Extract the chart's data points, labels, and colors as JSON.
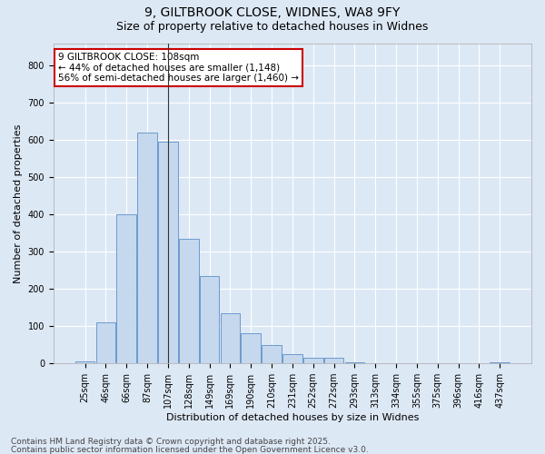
{
  "title1": "9, GILTBROOK CLOSE, WIDNES, WA8 9FY",
  "title2": "Size of property relative to detached houses in Widnes",
  "xlabel": "Distribution of detached houses by size in Widnes",
  "ylabel": "Number of detached properties",
  "categories": [
    "25sqm",
    "46sqm",
    "66sqm",
    "87sqm",
    "107sqm",
    "128sqm",
    "149sqm",
    "169sqm",
    "190sqm",
    "210sqm",
    "231sqm",
    "252sqm",
    "272sqm",
    "293sqm",
    "313sqm",
    "334sqm",
    "355sqm",
    "375sqm",
    "396sqm",
    "416sqm",
    "437sqm"
  ],
  "values": [
    5,
    110,
    400,
    620,
    595,
    335,
    235,
    135,
    80,
    50,
    25,
    15,
    15,
    3,
    0,
    0,
    0,
    0,
    0,
    0,
    3
  ],
  "bar_color": "#c5d8ed",
  "bar_edge_color": "#5b8fc9",
  "vline_x_idx": 4,
  "vline_color": "#333333",
  "annotation_text": "9 GILTBROOK CLOSE: 108sqm\n← 44% of detached houses are smaller (1,148)\n56% of semi-detached houses are larger (1,460) →",
  "annotation_box_facecolor": "#ffffff",
  "annotation_box_edgecolor": "#cc0000",
  "footer1": "Contains HM Land Registry data © Crown copyright and database right 2025.",
  "footer2": "Contains public sector information licensed under the Open Government Licence v3.0.",
  "ylim": [
    0,
    860
  ],
  "yticks": [
    0,
    100,
    200,
    300,
    400,
    500,
    600,
    700,
    800
  ],
  "background_color": "#dde8f5",
  "plot_background": "#dde8f5",
  "grid_color": "#ffffff",
  "title_fontsize": 10,
  "subtitle_fontsize": 9,
  "axis_label_fontsize": 8,
  "tick_fontsize": 7,
  "footer_fontsize": 6.5,
  "annotation_fontsize": 7.5
}
